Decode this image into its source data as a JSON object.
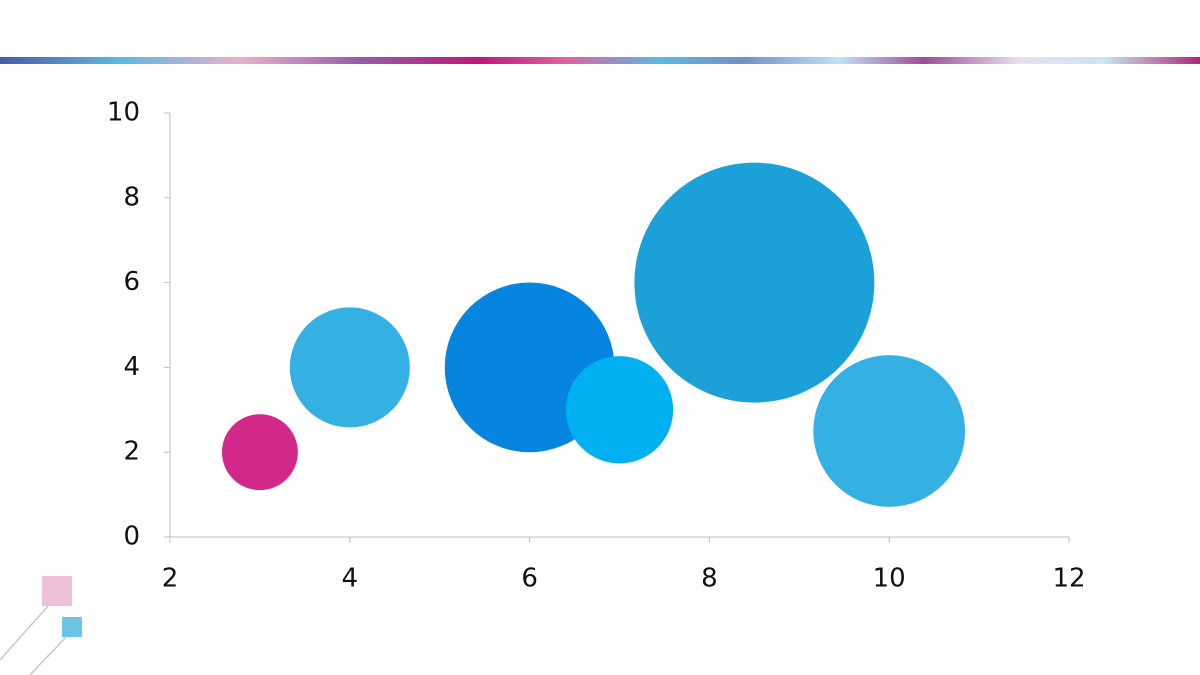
{
  "chart_data": {
    "type": "bubble",
    "x": [
      3,
      4,
      6,
      7,
      8.5,
      10
    ],
    "values": [
      2,
      4,
      4,
      3,
      6,
      2.5
    ],
    "sizes": [
      1,
      2.5,
      5,
      2,
      10,
      4
    ],
    "colors": [
      "#d1288a",
      "#35b0e2",
      "#0584e0",
      "#00b0f0",
      "#1ba1d8",
      "#35b0e2"
    ],
    "xlim": [
      2,
      12
    ],
    "xticks": [
      2,
      4,
      6,
      8,
      10,
      12
    ],
    "ylim": [
      0,
      10
    ],
    "yticks": [
      0,
      2,
      4,
      6,
      8,
      10
    ],
    "grid": false
  }
}
